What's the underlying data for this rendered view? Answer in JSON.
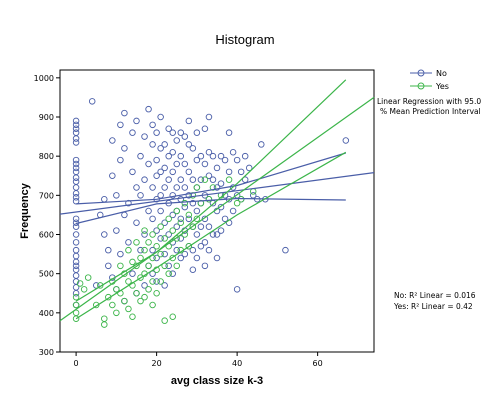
{
  "chart_data": {
    "type": "scatter",
    "title": "Histogram",
    "xlabel": "avg class size k-3",
    "ylabel": "Frequency",
    "xlim": [
      -4,
      74
    ],
    "ylim": [
      300,
      1020
    ],
    "x_ticks": [
      "0",
      "20",
      "40",
      "60"
    ],
    "y_ticks": [
      "300",
      "400",
      "500",
      "600",
      "700",
      "800",
      "900",
      "1000"
    ],
    "grid": false,
    "legend_position": "top-right",
    "legend": [
      {
        "name": "No",
        "color": "#4a5ea8"
      },
      {
        "name": "Yes",
        "color": "#3cb54a"
      }
    ],
    "regression_note": [
      "Linear Regression with 95.0",
      "% Mean Prediction Interval"
    ],
    "r2_notes": [
      "No: R² Linear = 0.016",
      "Yes: R² Linear = 0.42"
    ],
    "series": [
      {
        "name": "No",
        "color": "#4a5ea8",
        "points": [
          [
            0,
            890
          ],
          [
            0,
            880
          ],
          [
            0,
            870
          ],
          [
            0,
            860
          ],
          [
            0,
            845
          ],
          [
            0,
            835
          ],
          [
            0,
            790
          ],
          [
            0,
            780
          ],
          [
            0,
            770
          ],
          [
            0,
            760
          ],
          [
            0,
            745
          ],
          [
            0,
            735
          ],
          [
            0,
            720
          ],
          [
            0,
            705
          ],
          [
            0,
            695
          ],
          [
            0,
            685
          ],
          [
            0,
            640
          ],
          [
            0,
            630
          ],
          [
            0,
            620
          ],
          [
            0,
            600
          ],
          [
            0,
            580
          ],
          [
            0,
            560
          ],
          [
            0,
            545
          ],
          [
            0,
            530
          ],
          [
            0,
            520
          ],
          [
            0,
            510
          ],
          [
            0,
            495
          ],
          [
            0,
            480
          ],
          [
            0,
            465
          ],
          [
            0,
            450
          ],
          [
            0,
            420
          ],
          [
            4,
            940
          ],
          [
            5,
            470
          ],
          [
            6,
            650
          ],
          [
            7,
            690
          ],
          [
            7,
            600
          ],
          [
            8,
            560
          ],
          [
            8,
            520
          ],
          [
            9,
            840
          ],
          [
            9,
            750
          ],
          [
            9,
            490
          ],
          [
            10,
            700
          ],
          [
            10,
            610
          ],
          [
            10,
            460
          ],
          [
            11,
            880
          ],
          [
            11,
            790
          ],
          [
            11,
            550
          ],
          [
            12,
            910
          ],
          [
            12,
            820
          ],
          [
            12,
            650
          ],
          [
            12,
            430
          ],
          [
            13,
            680
          ],
          [
            13,
            580
          ],
          [
            14,
            860
          ],
          [
            14,
            760
          ],
          [
            14,
            500
          ],
          [
            15,
            890
          ],
          [
            15,
            720
          ],
          [
            15,
            630
          ],
          [
            15,
            450
          ],
          [
            16,
            800
          ],
          [
            16,
            700
          ],
          [
            16,
            560
          ],
          [
            17,
            850
          ],
          [
            17,
            740
          ],
          [
            17,
            600
          ],
          [
            17,
            470
          ],
          [
            18,
            920
          ],
          [
            18,
            780
          ],
          [
            18,
            660
          ],
          [
            18,
            520
          ],
          [
            19,
            880
          ],
          [
            19,
            830
          ],
          [
            19,
            720
          ],
          [
            19,
            640
          ],
          [
            19,
            560
          ],
          [
            19,
            500
          ],
          [
            20,
            860
          ],
          [
            20,
            790
          ],
          [
            20,
            750
          ],
          [
            20,
            690
          ],
          [
            20,
            610
          ],
          [
            20,
            540
          ],
          [
            20,
            480
          ],
          [
            21,
            900
          ],
          [
            21,
            820
          ],
          [
            21,
            760
          ],
          [
            21,
            700
          ],
          [
            21,
            660
          ],
          [
            21,
            590
          ],
          [
            22,
            830
          ],
          [
            22,
            770
          ],
          [
            22,
            720
          ],
          [
            22,
            630
          ],
          [
            22,
            550
          ],
          [
            22,
            470
          ],
          [
            23,
            870
          ],
          [
            23,
            800
          ],
          [
            23,
            740
          ],
          [
            23,
            680
          ],
          [
            23,
            600
          ],
          [
            23,
            520
          ],
          [
            24,
            860
          ],
          [
            24,
            810
          ],
          [
            24,
            760
          ],
          [
            24,
            700
          ],
          [
            24,
            650
          ],
          [
            24,
            580
          ],
          [
            24,
            500
          ],
          [
            25,
            840
          ],
          [
            25,
            780
          ],
          [
            25,
            720
          ],
          [
            25,
            660
          ],
          [
            25,
            620
          ],
          [
            25,
            560
          ],
          [
            26,
            860
          ],
          [
            26,
            800
          ],
          [
            26,
            740
          ],
          [
            26,
            690
          ],
          [
            26,
            640
          ],
          [
            26,
            590
          ],
          [
            26,
            540
          ],
          [
            27,
            850
          ],
          [
            27,
            780
          ],
          [
            27,
            720
          ],
          [
            27,
            670
          ],
          [
            27,
            610
          ],
          [
            27,
            550
          ],
          [
            28,
            890
          ],
          [
            28,
            830
          ],
          [
            28,
            760
          ],
          [
            28,
            700
          ],
          [
            28,
            640
          ],
          [
            28,
            570
          ],
          [
            29,
            820
          ],
          [
            29,
            740
          ],
          [
            29,
            680
          ],
          [
            29,
            620
          ],
          [
            29,
            560
          ],
          [
            29,
            510
          ],
          [
            30,
            860
          ],
          [
            30,
            790
          ],
          [
            30,
            720
          ],
          [
            30,
            660
          ],
          [
            30,
            600
          ],
          [
            30,
            540
          ],
          [
            31,
            800
          ],
          [
            31,
            740
          ],
          [
            31,
            680
          ],
          [
            31,
            620
          ],
          [
            31,
            570
          ],
          [
            32,
            870
          ],
          [
            32,
            780
          ],
          [
            32,
            700
          ],
          [
            32,
            640
          ],
          [
            32,
            580
          ],
          [
            32,
            520
          ],
          [
            33,
            900
          ],
          [
            33,
            810
          ],
          [
            33,
            750
          ],
          [
            33,
            690
          ],
          [
            33,
            620
          ],
          [
            33,
            560
          ],
          [
            34,
            800
          ],
          [
            34,
            740
          ],
          [
            34,
            680
          ],
          [
            34,
            600
          ],
          [
            35,
            770
          ],
          [
            35,
            720
          ],
          [
            35,
            660
          ],
          [
            35,
            600
          ],
          [
            35,
            540
          ],
          [
            36,
            800
          ],
          [
            36,
            730
          ],
          [
            36,
            670
          ],
          [
            36,
            610
          ],
          [
            37,
            790
          ],
          [
            37,
            700
          ],
          [
            37,
            640
          ],
          [
            38,
            860
          ],
          [
            38,
            760
          ],
          [
            38,
            690
          ],
          [
            38,
            630
          ],
          [
            39,
            810
          ],
          [
            39,
            720
          ],
          [
            39,
            660
          ],
          [
            40,
            790
          ],
          [
            40,
            700
          ],
          [
            40,
            460
          ],
          [
            41,
            760
          ],
          [
            41,
            690
          ],
          [
            42,
            800
          ],
          [
            42,
            740
          ],
          [
            43,
            770
          ],
          [
            44,
            700
          ],
          [
            45,
            690
          ],
          [
            46,
            830
          ],
          [
            47,
            690
          ],
          [
            52,
            560
          ],
          [
            67,
            840
          ]
        ]
      },
      {
        "name": "Yes",
        "color": "#3cb54a",
        "points": [
          [
            0,
            440
          ],
          [
            0,
            420
          ],
          [
            0,
            400
          ],
          [
            0,
            385
          ],
          [
            1,
            475
          ],
          [
            2,
            460
          ],
          [
            3,
            490
          ],
          [
            5,
            420
          ],
          [
            6,
            470
          ],
          [
            7,
            385
          ],
          [
            7,
            370
          ],
          [
            8,
            440
          ],
          [
            9,
            480
          ],
          [
            9,
            420
          ],
          [
            10,
            460
          ],
          [
            10,
            400
          ],
          [
            11,
            520
          ],
          [
            11,
            450
          ],
          [
            12,
            500
          ],
          [
            12,
            430
          ],
          [
            13,
            560
          ],
          [
            13,
            480
          ],
          [
            13,
            410
          ],
          [
            14,
            530
          ],
          [
            14,
            470
          ],
          [
            14,
            390
          ],
          [
            15,
            580
          ],
          [
            15,
            520
          ],
          [
            15,
            450
          ],
          [
            16,
            540
          ],
          [
            16,
            490
          ],
          [
            16,
            430
          ],
          [
            17,
            610
          ],
          [
            17,
            560
          ],
          [
            17,
            500
          ],
          [
            17,
            440
          ],
          [
            18,
            580
          ],
          [
            18,
            520
          ],
          [
            18,
            460
          ],
          [
            19,
            600
          ],
          [
            19,
            540
          ],
          [
            19,
            480
          ],
          [
            19,
            420
          ],
          [
            20,
            570
          ],
          [
            20,
            510
          ],
          [
            20,
            450
          ],
          [
            21,
            620
          ],
          [
            21,
            550
          ],
          [
            21,
            480
          ],
          [
            22,
            590
          ],
          [
            22,
            520
          ],
          [
            22,
            380
          ],
          [
            23,
            640
          ],
          [
            23,
            570
          ],
          [
            23,
            500
          ],
          [
            24,
            610
          ],
          [
            24,
            540
          ],
          [
            24,
            390
          ],
          [
            25,
            660
          ],
          [
            25,
            590
          ],
          [
            25,
            520
          ],
          [
            26,
            630
          ],
          [
            26,
            560
          ],
          [
            27,
            680
          ],
          [
            27,
            600
          ],
          [
            28,
            650
          ],
          [
            28,
            570
          ],
          [
            29,
            700
          ],
          [
            29,
            620
          ],
          [
            30,
            720
          ],
          [
            30,
            640
          ],
          [
            31,
            680
          ],
          [
            32,
            740
          ],
          [
            33,
            690
          ],
          [
            34,
            720
          ],
          [
            36,
            700
          ],
          [
            38,
            740
          ],
          [
            40,
            680
          ],
          [
            41,
            690
          ],
          [
            44,
            710
          ]
        ]
      }
    ],
    "fit_lines": [
      {
        "series": "No",
        "type": "fit",
        "color": "#4a5ea8",
        "points": [
          [
            -4,
            652
          ],
          [
            74,
            758
          ]
        ]
      },
      {
        "series": "No",
        "type": "ci-upper",
        "color": "#4a5ea8",
        "points": [
          [
            0,
            678
          ],
          [
            20,
            690
          ],
          [
            40,
            725
          ],
          [
            67,
            808
          ]
        ]
      },
      {
        "series": "No",
        "type": "ci-lower",
        "color": "#4a5ea8",
        "points": [
          [
            0,
            628
          ],
          [
            20,
            678
          ],
          [
            40,
            692
          ],
          [
            67,
            688
          ]
        ]
      },
      {
        "series": "Yes",
        "type": "fit",
        "color": "#3cb54a",
        "points": [
          [
            -4,
            380
          ],
          [
            74,
            950
          ]
        ]
      },
      {
        "series": "Yes",
        "type": "ci-upper",
        "color": "#3cb54a",
        "points": [
          [
            0,
            430
          ],
          [
            20,
            555
          ],
          [
            40,
            730
          ],
          [
            67,
            995
          ]
        ]
      },
      {
        "series": "Yes",
        "type": "ci-lower",
        "color": "#3cb54a",
        "points": [
          [
            0,
            385
          ],
          [
            20,
            515
          ],
          [
            40,
            650
          ],
          [
            67,
            810
          ]
        ]
      }
    ]
  }
}
